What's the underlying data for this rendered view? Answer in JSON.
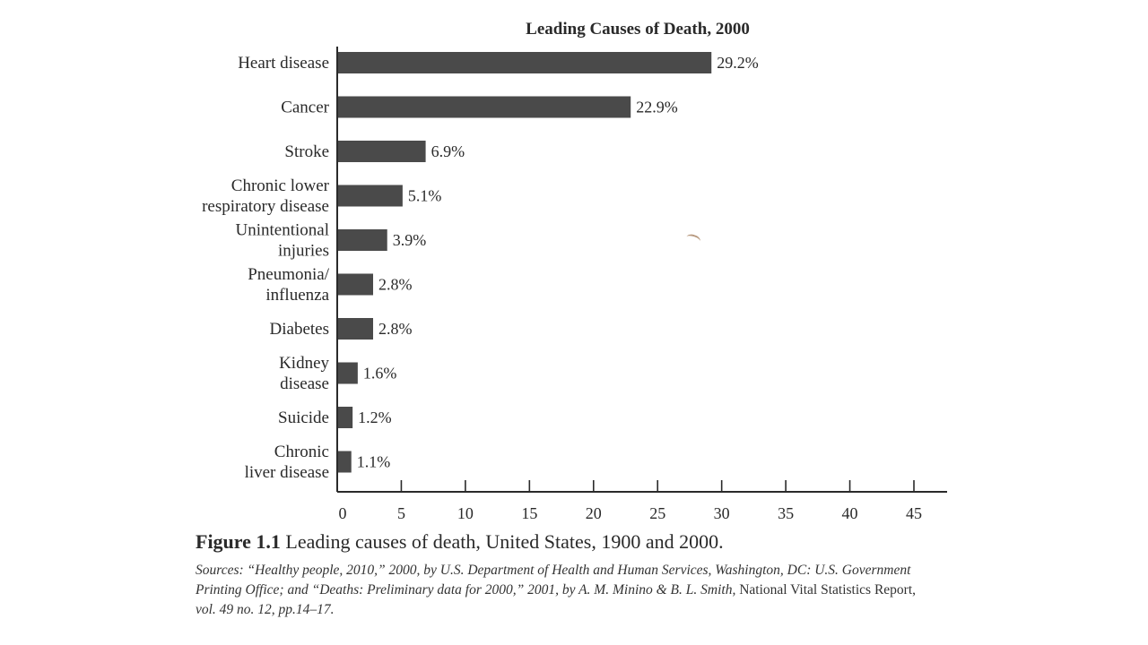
{
  "chart_data": {
    "type": "bar",
    "orientation": "horizontal",
    "title": "Leading Causes of Death, 2000",
    "categories": [
      [
        "Heart disease"
      ],
      [
        "Cancer"
      ],
      [
        "Stroke"
      ],
      [
        "Chronic lower",
        "respiratory disease"
      ],
      [
        "Unintentional",
        "injuries"
      ],
      [
        "Pneumonia/",
        "influenza"
      ],
      [
        "Diabetes"
      ],
      [
        "Kidney",
        "disease"
      ],
      [
        "Suicide"
      ],
      [
        "Chronic",
        "liver disease"
      ]
    ],
    "values": [
      29.2,
      22.9,
      6.9,
      5.1,
      3.9,
      2.8,
      2.8,
      1.6,
      1.2,
      1.1
    ],
    "value_labels": [
      "29.2%",
      "22.9%",
      "6.9%",
      "5.1%",
      "3.9%",
      "2.8%",
      "2.8%",
      "1.6%",
      "1.2%",
      "1.1%"
    ],
    "x_ticks": [
      0,
      5,
      10,
      15,
      20,
      25,
      30,
      35,
      40,
      45
    ],
    "xlim": [
      0,
      45
    ],
    "bar_color": "#4a4a4a"
  },
  "caption": {
    "label": "Figure 1.1",
    "text": " Leading causes of death, United States, 1900 and 2000."
  },
  "sources": {
    "italic_part": "Sources: “Healthy people, 2010,” 2000, by U.S. Department of Health and Human Services, Washington, DC: U.S. Government Printing Office; and “Deaths: Preliminary data for 2000,” 2001, by A. M. Minino & B. L. Smith,",
    "normal_part1": " National Vital Statistics Report, ",
    "italic_part2": "vol. 49 no. 12, pp.14–17."
  }
}
